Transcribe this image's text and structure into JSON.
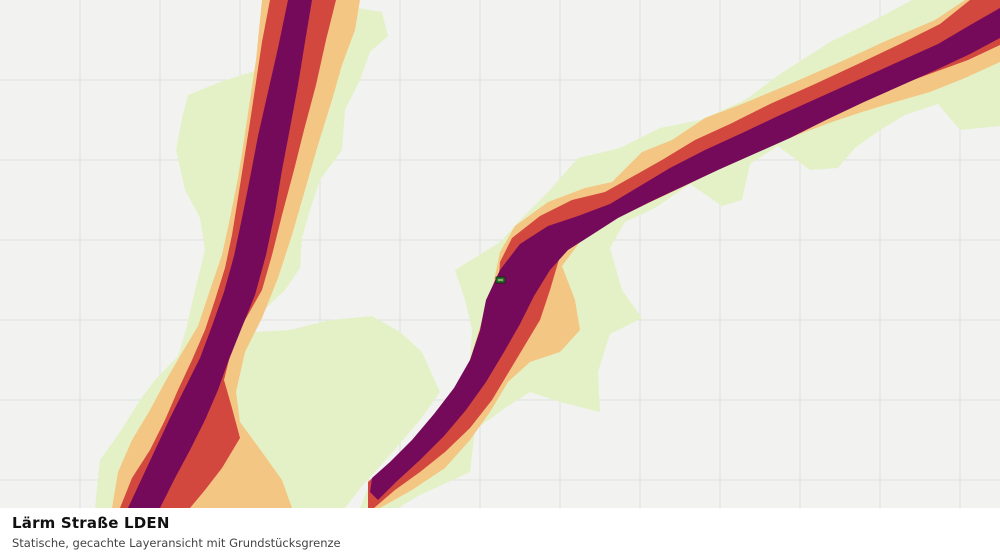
{
  "map": {
    "layer": "Lärm Straße LDEN",
    "noise_bands": [
      {
        "level": "low",
        "color": "#e4f1c6"
      },
      {
        "level": "medium",
        "color": "#f4c684"
      },
      {
        "level": "high",
        "color": "#d2473e"
      },
      {
        "level": "very-high",
        "color": "#750a5a"
      }
    ],
    "grid_color": "#dfe1de",
    "background_color": "#f2f3f1",
    "marker_icon": "parcel-marker-icon"
  },
  "caption": {
    "title": "Lärm Straße LDEN",
    "subtitle": "Statische, gecachte Layeransicht mit Grundstücksgrenze"
  }
}
